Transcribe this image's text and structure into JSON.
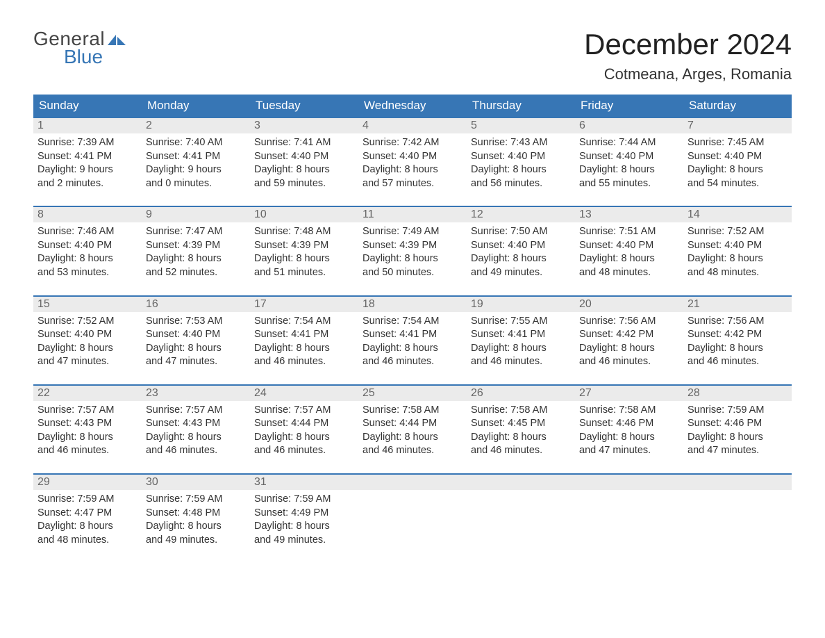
{
  "logo": {
    "general": "General",
    "blue": "Blue"
  },
  "title": "December 2024",
  "location": "Cotmeana, Arges, Romania",
  "colors": {
    "header_bg": "#3776b5",
    "header_text": "#ffffff",
    "daynum_bg": "#ebebeb",
    "daynum_text": "#666666",
    "body_text": "#333333",
    "accent_border": "#3776b5",
    "background": "#ffffff"
  },
  "day_names": [
    "Sunday",
    "Monday",
    "Tuesday",
    "Wednesday",
    "Thursday",
    "Friday",
    "Saturday"
  ],
  "weeks": [
    [
      {
        "n": "1",
        "sunrise": "7:39 AM",
        "sunset": "4:41 PM",
        "dh": "9",
        "dm": "2"
      },
      {
        "n": "2",
        "sunrise": "7:40 AM",
        "sunset": "4:41 PM",
        "dh": "9",
        "dm": "0"
      },
      {
        "n": "3",
        "sunrise": "7:41 AM",
        "sunset": "4:40 PM",
        "dh": "8",
        "dm": "59"
      },
      {
        "n": "4",
        "sunrise": "7:42 AM",
        "sunset": "4:40 PM",
        "dh": "8",
        "dm": "57"
      },
      {
        "n": "5",
        "sunrise": "7:43 AM",
        "sunset": "4:40 PM",
        "dh": "8",
        "dm": "56"
      },
      {
        "n": "6",
        "sunrise": "7:44 AM",
        "sunset": "4:40 PM",
        "dh": "8",
        "dm": "55"
      },
      {
        "n": "7",
        "sunrise": "7:45 AM",
        "sunset": "4:40 PM",
        "dh": "8",
        "dm": "54"
      }
    ],
    [
      {
        "n": "8",
        "sunrise": "7:46 AM",
        "sunset": "4:40 PM",
        "dh": "8",
        "dm": "53"
      },
      {
        "n": "9",
        "sunrise": "7:47 AM",
        "sunset": "4:39 PM",
        "dh": "8",
        "dm": "52"
      },
      {
        "n": "10",
        "sunrise": "7:48 AM",
        "sunset": "4:39 PM",
        "dh": "8",
        "dm": "51"
      },
      {
        "n": "11",
        "sunrise": "7:49 AM",
        "sunset": "4:39 PM",
        "dh": "8",
        "dm": "50"
      },
      {
        "n": "12",
        "sunrise": "7:50 AM",
        "sunset": "4:40 PM",
        "dh": "8",
        "dm": "49"
      },
      {
        "n": "13",
        "sunrise": "7:51 AM",
        "sunset": "4:40 PM",
        "dh": "8",
        "dm": "48"
      },
      {
        "n": "14",
        "sunrise": "7:52 AM",
        "sunset": "4:40 PM",
        "dh": "8",
        "dm": "48"
      }
    ],
    [
      {
        "n": "15",
        "sunrise": "7:52 AM",
        "sunset": "4:40 PM",
        "dh": "8",
        "dm": "47"
      },
      {
        "n": "16",
        "sunrise": "7:53 AM",
        "sunset": "4:40 PM",
        "dh": "8",
        "dm": "47"
      },
      {
        "n": "17",
        "sunrise": "7:54 AM",
        "sunset": "4:41 PM",
        "dh": "8",
        "dm": "46"
      },
      {
        "n": "18",
        "sunrise": "7:54 AM",
        "sunset": "4:41 PM",
        "dh": "8",
        "dm": "46"
      },
      {
        "n": "19",
        "sunrise": "7:55 AM",
        "sunset": "4:41 PM",
        "dh": "8",
        "dm": "46"
      },
      {
        "n": "20",
        "sunrise": "7:56 AM",
        "sunset": "4:42 PM",
        "dh": "8",
        "dm": "46"
      },
      {
        "n": "21",
        "sunrise": "7:56 AM",
        "sunset": "4:42 PM",
        "dh": "8",
        "dm": "46"
      }
    ],
    [
      {
        "n": "22",
        "sunrise": "7:57 AM",
        "sunset": "4:43 PM",
        "dh": "8",
        "dm": "46"
      },
      {
        "n": "23",
        "sunrise": "7:57 AM",
        "sunset": "4:43 PM",
        "dh": "8",
        "dm": "46"
      },
      {
        "n": "24",
        "sunrise": "7:57 AM",
        "sunset": "4:44 PM",
        "dh": "8",
        "dm": "46"
      },
      {
        "n": "25",
        "sunrise": "7:58 AM",
        "sunset": "4:44 PM",
        "dh": "8",
        "dm": "46"
      },
      {
        "n": "26",
        "sunrise": "7:58 AM",
        "sunset": "4:45 PM",
        "dh": "8",
        "dm": "46"
      },
      {
        "n": "27",
        "sunrise": "7:58 AM",
        "sunset": "4:46 PM",
        "dh": "8",
        "dm": "47"
      },
      {
        "n": "28",
        "sunrise": "7:59 AM",
        "sunset": "4:46 PM",
        "dh": "8",
        "dm": "47"
      }
    ],
    [
      {
        "n": "29",
        "sunrise": "7:59 AM",
        "sunset": "4:47 PM",
        "dh": "8",
        "dm": "48"
      },
      {
        "n": "30",
        "sunrise": "7:59 AM",
        "sunset": "4:48 PM",
        "dh": "8",
        "dm": "49"
      },
      {
        "n": "31",
        "sunrise": "7:59 AM",
        "sunset": "4:49 PM",
        "dh": "8",
        "dm": "49"
      },
      null,
      null,
      null,
      null
    ]
  ],
  "labels": {
    "sunrise": "Sunrise: ",
    "sunset": "Sunset: ",
    "daylight1": "Daylight: ",
    "hours": " hours",
    "and": "and ",
    "minutes": " minutes."
  }
}
